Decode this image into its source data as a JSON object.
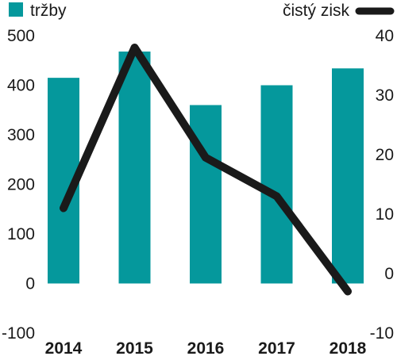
{
  "chart_data": {
    "type": "bar+line",
    "categories": [
      "2014",
      "2015",
      "2016",
      "2017",
      "2018"
    ],
    "series": [
      {
        "name": "tržby",
        "type": "bar",
        "axis": "left",
        "values": [
          415,
          468,
          360,
          400,
          434
        ],
        "color": "#05989c"
      },
      {
        "name": "čistý zisk",
        "type": "line",
        "axis": "right",
        "values": [
          11,
          38,
          19.5,
          13,
          -3
        ],
        "color": "#1a1a1a"
      }
    ],
    "y_left": {
      "min": -100,
      "max": 500,
      "ticks": [
        "-100",
        "0",
        "100",
        "200",
        "300",
        "400",
        "500"
      ]
    },
    "y_right": {
      "min": -10,
      "max": 40,
      "ticks": [
        "-10",
        "0",
        "10",
        "20",
        "30",
        "40"
      ]
    },
    "legend": [
      {
        "label": "tržby",
        "placement": "top-left",
        "swatch": "square",
        "color": "#05989c"
      },
      {
        "label": "čistý zisk",
        "placement": "top-right",
        "swatch": "line",
        "color": "#1a1a1a"
      }
    ],
    "grid": false
  }
}
